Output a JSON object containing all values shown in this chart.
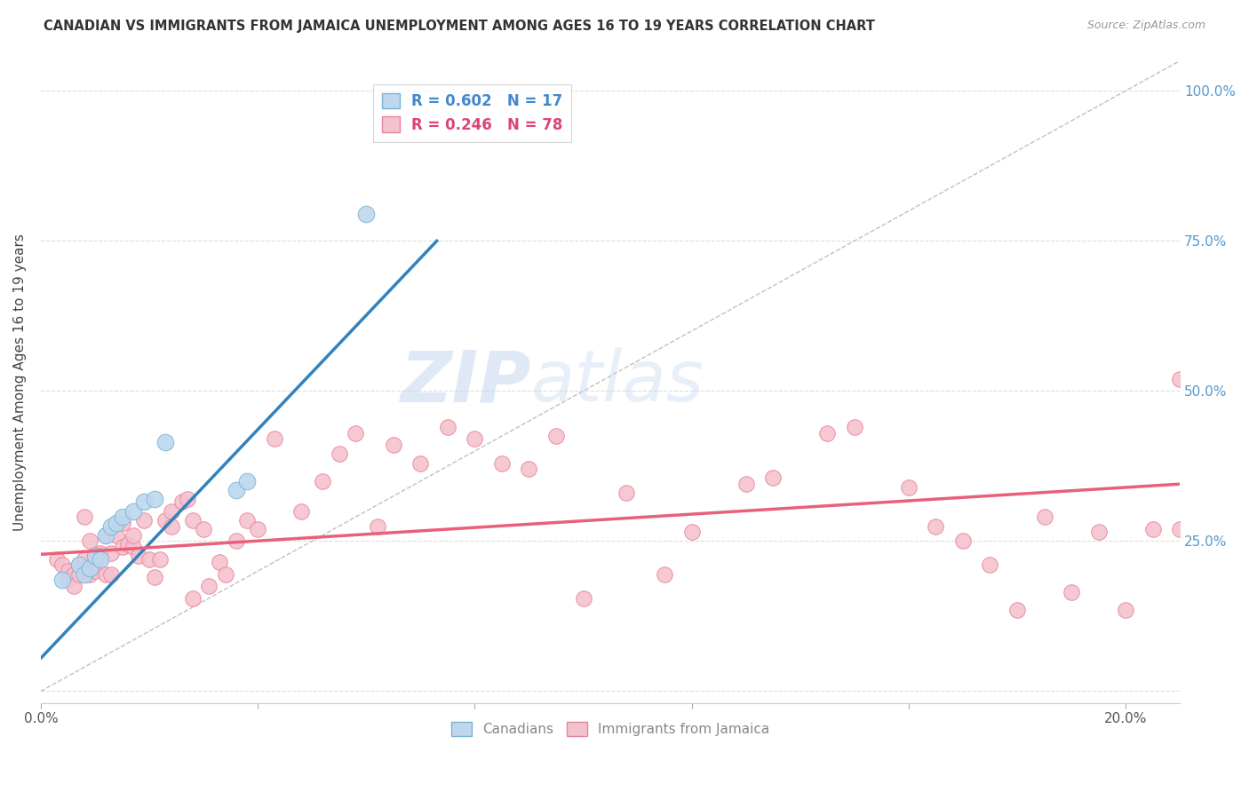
{
  "title": "CANADIAN VS IMMIGRANTS FROM JAMAICA UNEMPLOYMENT AMONG AGES 16 TO 19 YEARS CORRELATION CHART",
  "source": "Source: ZipAtlas.com",
  "ylabel": "Unemployment Among Ages 16 to 19 years",
  "x_ticks": [
    0.0,
    0.04,
    0.08,
    0.12,
    0.16,
    0.2
  ],
  "y_ticks": [
    0.0,
    0.25,
    0.5,
    0.75,
    1.0
  ],
  "xlim": [
    0.0,
    0.21
  ],
  "ylim": [
    -0.02,
    1.05
  ],
  "legend_entries": [
    {
      "label": "R = 0.602   N = 17"
    },
    {
      "label": "R = 0.246   N = 78"
    }
  ],
  "legend_labels_bottom": [
    "Canadians",
    "Immigrants from Jamaica"
  ],
  "watermark_zip": "ZIP",
  "watermark_atlas": "atlas",
  "background_color": "#ffffff",
  "grid_color": "#dddddd",
  "reference_line_color": "#c0c0c0",
  "blue_line_color": "#3182bd",
  "pink_line_color": "#e8607a",
  "canadian_fill": "#bdd7ee",
  "canadian_edge": "#7ab3d4",
  "immigrant_fill": "#f4c2ce",
  "immigrant_edge": "#e8849a",
  "blue_line_x0": 0.0,
  "blue_line_y0": 0.055,
  "blue_line_x1": 0.073,
  "blue_line_y1": 0.75,
  "pink_line_x0": 0.0,
  "pink_line_y0": 0.228,
  "pink_line_x1": 0.21,
  "pink_line_y1": 0.345,
  "canadians_x": [
    0.004,
    0.007,
    0.008,
    0.009,
    0.01,
    0.011,
    0.012,
    0.013,
    0.014,
    0.015,
    0.017,
    0.019,
    0.021,
    0.023,
    0.036,
    0.038,
    0.06
  ],
  "canadians_y": [
    0.185,
    0.21,
    0.195,
    0.205,
    0.225,
    0.22,
    0.26,
    0.275,
    0.28,
    0.29,
    0.3,
    0.315,
    0.32,
    0.415,
    0.335,
    0.35,
    0.795
  ],
  "immigrants_x": [
    0.003,
    0.004,
    0.005,
    0.005,
    0.006,
    0.006,
    0.007,
    0.007,
    0.008,
    0.008,
    0.009,
    0.009,
    0.01,
    0.01,
    0.011,
    0.011,
    0.012,
    0.012,
    0.013,
    0.013,
    0.014,
    0.015,
    0.015,
    0.016,
    0.017,
    0.017,
    0.018,
    0.019,
    0.02,
    0.021,
    0.022,
    0.023,
    0.024,
    0.024,
    0.026,
    0.027,
    0.028,
    0.028,
    0.03,
    0.031,
    0.033,
    0.034,
    0.036,
    0.038,
    0.04,
    0.043,
    0.048,
    0.052,
    0.055,
    0.058,
    0.062,
    0.065,
    0.07,
    0.075,
    0.08,
    0.085,
    0.09,
    0.095,
    0.1,
    0.108,
    0.115,
    0.12,
    0.13,
    0.135,
    0.145,
    0.15,
    0.16,
    0.165,
    0.17,
    0.175,
    0.18,
    0.185,
    0.19,
    0.195,
    0.2,
    0.205,
    0.21,
    0.21
  ],
  "immigrants_y": [
    0.22,
    0.21,
    0.2,
    0.185,
    0.195,
    0.175,
    0.195,
    0.21,
    0.29,
    0.22,
    0.25,
    0.195,
    0.215,
    0.2,
    0.23,
    0.225,
    0.26,
    0.195,
    0.23,
    0.195,
    0.26,
    0.28,
    0.24,
    0.245,
    0.24,
    0.26,
    0.225,
    0.285,
    0.22,
    0.19,
    0.22,
    0.285,
    0.275,
    0.3,
    0.315,
    0.32,
    0.155,
    0.285,
    0.27,
    0.175,
    0.215,
    0.195,
    0.25,
    0.285,
    0.27,
    0.42,
    0.3,
    0.35,
    0.395,
    0.43,
    0.275,
    0.41,
    0.38,
    0.44,
    0.42,
    0.38,
    0.37,
    0.425,
    0.155,
    0.33,
    0.195,
    0.265,
    0.345,
    0.355,
    0.43,
    0.44,
    0.34,
    0.275,
    0.25,
    0.21,
    0.135,
    0.29,
    0.165,
    0.265,
    0.135,
    0.27,
    0.52,
    0.27
  ]
}
